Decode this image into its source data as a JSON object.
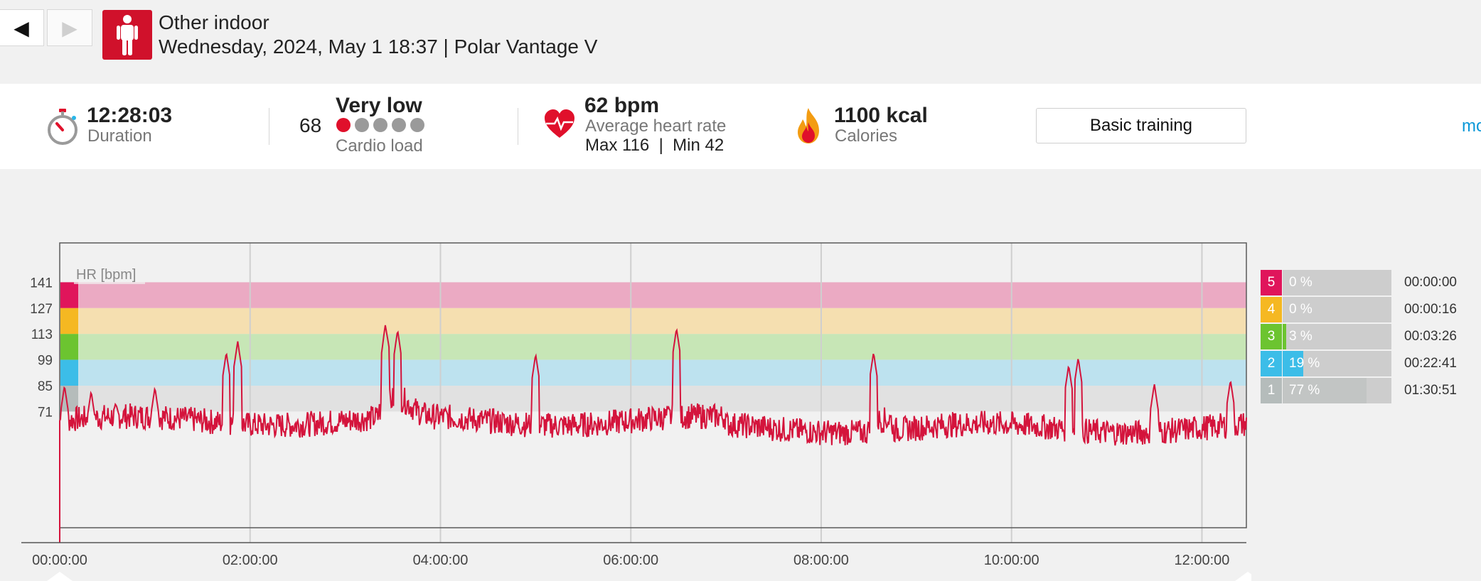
{
  "nav": {
    "prev_glyph": "◀",
    "next_glyph": "▶"
  },
  "header": {
    "sport_icon": "person-standing-icon",
    "title": "Other indoor",
    "subtitle": "Wednesday, 2024, May 1 18:37 | Polar Vantage V"
  },
  "summary": {
    "duration": {
      "icon": "stopwatch-icon",
      "value": "12:28:03",
      "label": "Duration"
    },
    "cardio_load": {
      "value": "68",
      "level": "Very low",
      "level_dots_filled": 1,
      "level_dots_total": 5,
      "label": "Cardio load"
    },
    "heart_rate": {
      "icon": "heart-icon",
      "value": "62 bpm",
      "label": "Average heart rate",
      "maxmin": "Max 116  |  Min 42"
    },
    "calories": {
      "icon": "flame-icon",
      "value": "1100 kcal",
      "label": "Calories"
    },
    "training_benefit_button": "Basic training",
    "more_link": "mo"
  },
  "colors": {
    "accent": "#d0112b",
    "hr_line": "#d4143c",
    "zone5": "#e0155b",
    "zone4": "#f5b822",
    "zone3": "#6cc430",
    "zone2": "#3cbde8",
    "zone1": "#b5bcbb",
    "link": "#0a98d8"
  },
  "chart_data": {
    "type": "line",
    "title": "",
    "ylabel": "HR [bpm]",
    "xlabel": "",
    "x_ticks": [
      "00:00:00",
      "02:00:00",
      "04:00:00",
      "06:00:00",
      "08:00:00",
      "10:00:00",
      "12:00:00"
    ],
    "y_ticks": [
      141,
      127,
      113,
      99,
      85,
      71
    ],
    "ylim": [
      0,
      148
    ],
    "x_range_hours": [
      0,
      12.467
    ],
    "zone_bands": [
      {
        "zone": 5,
        "from": 127,
        "to": 141,
        "color": "#ebaac3"
      },
      {
        "zone": 4,
        "from": 113,
        "to": 127,
        "color": "#f5dfb0"
      },
      {
        "zone": 3,
        "from": 99,
        "to": 113,
        "color": "#c7e6b6"
      },
      {
        "zone": 2,
        "from": 85,
        "to": 99,
        "color": "#bde2ef"
      },
      {
        "zone": 1,
        "from": 71,
        "to": 85,
        "color": "#e1e1e1"
      }
    ],
    "series": [
      {
        "color": "#d4143c",
        "baseline_bpm": 62,
        "spikes": [
          {
            "hour": 0.05,
            "bpm": 85
          },
          {
            "hour": 0.33,
            "bpm": 82
          },
          {
            "hour": 1.0,
            "bpm": 84
          },
          {
            "hour": 1.75,
            "bpm": 103
          },
          {
            "hour": 1.87,
            "bpm": 109
          },
          {
            "hour": 3.42,
            "bpm": 112
          },
          {
            "hour": 3.55,
            "bpm": 105
          },
          {
            "hour": 5.0,
            "bpm": 102
          },
          {
            "hour": 6.48,
            "bpm": 116
          },
          {
            "hour": 8.55,
            "bpm": 97
          },
          {
            "hour": 10.6,
            "bpm": 96
          },
          {
            "hour": 10.7,
            "bpm": 100
          },
          {
            "hour": 11.5,
            "bpm": 86
          },
          {
            "hour": 12.3,
            "bpm": 88
          }
        ]
      }
    ]
  },
  "zones": [
    {
      "num": "5",
      "pct": "0 %",
      "fraction": 0.0,
      "time": "00:00:00",
      "color": "#e0155b"
    },
    {
      "num": "4",
      "pct": "0 %",
      "fraction": 0.0,
      "time": "00:00:16",
      "color": "#f5b822"
    },
    {
      "num": "3",
      "pct": "3 %",
      "fraction": 0.03,
      "time": "00:03:26",
      "color": "#6cc430"
    },
    {
      "num": "2",
      "pct": "19 %",
      "fraction": 0.19,
      "time": "00:22:41",
      "color": "#3cbde8"
    },
    {
      "num": "1",
      "pct": "77 %",
      "fraction": 0.77,
      "time": "01:30:51",
      "color": "#b5bcbb"
    }
  ]
}
